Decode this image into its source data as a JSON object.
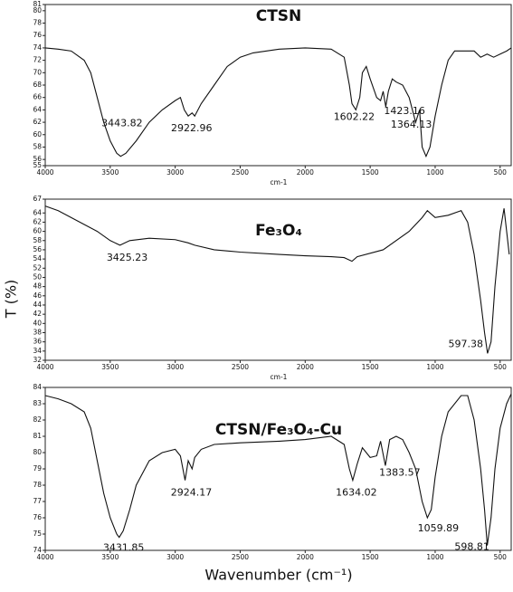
{
  "y_label": "T (%)",
  "x_label": "Wavenumber (cm⁻¹)",
  "chart_data": [
    {
      "type": "line",
      "title": "CTSN",
      "x_axis_label": "cm-1",
      "color": "#111111",
      "xlim": [
        4000,
        415
      ],
      "xticks": [
        4000,
        3500,
        3000,
        2500,
        2000,
        1500,
        1000,
        500
      ],
      "ylim": [
        55,
        81
      ],
      "yticks": [
        55,
        56,
        58,
        60,
        62,
        64,
        66,
        68,
        70,
        72,
        74,
        76,
        78,
        80,
        81
      ],
      "x": [
        4000,
        3900,
        3800,
        3700,
        3650,
        3600,
        3550,
        3500,
        3450,
        3420,
        3380,
        3300,
        3200,
        3100,
        3000,
        2960,
        2930,
        2900,
        2870,
        2850,
        2800,
        2700,
        2600,
        2500,
        2400,
        2200,
        2000,
        1800,
        1700,
        1660,
        1640,
        1610,
        1580,
        1560,
        1530,
        1500,
        1450,
        1420,
        1400,
        1380,
        1360,
        1330,
        1300,
        1250,
        1200,
        1150,
        1120,
        1100,
        1070,
        1040,
        1000,
        950,
        900,
        850,
        700,
        650,
        600,
        550,
        500,
        450,
        415
      ],
      "values": [
        74,
        73.8,
        73.5,
        72,
        70,
        66,
        62,
        59,
        57,
        56.5,
        57,
        59,
        62,
        64,
        65.5,
        66,
        64,
        63,
        63.5,
        63,
        65,
        68,
        71,
        72.5,
        73.2,
        73.8,
        74,
        73.8,
        72.5,
        68,
        65,
        64,
        66,
        70,
        71,
        69,
        66,
        65.5,
        67,
        64.5,
        67,
        69,
        68.5,
        68,
        66,
        62,
        64,
        58,
        56.5,
        58,
        63,
        68,
        72,
        73.5,
        73.5,
        72.5,
        73,
        72.5,
        73,
        73.5,
        74
      ],
      "annotations": [
        {
          "x": 3443.82,
          "y": 56.5,
          "label": "3443.82"
        },
        {
          "x": 2922.96,
          "y": 63,
          "label": "2922.96"
        },
        {
          "x": 1602.22,
          "y": 64,
          "label": "1602.22"
        },
        {
          "x": 1423.16,
          "y": 65.5,
          "label": "1423.16"
        },
        {
          "x": 1364.13,
          "y": 64.5,
          "label": "1364.13"
        }
      ]
    },
    {
      "type": "line",
      "title": "Fe₃O₄",
      "x_axis_label": "cm-1",
      "color": "#111111",
      "xlim": [
        4000,
        415
      ],
      "xticks": [
        4000,
        3500,
        3000,
        2500,
        2000,
        1500,
        1000,
        500
      ],
      "ylim": [
        32,
        67
      ],
      "yticks": [
        32,
        34,
        36,
        38,
        40,
        42,
        44,
        46,
        48,
        50,
        52,
        54,
        56,
        58,
        60,
        62,
        64,
        67
      ],
      "x": [
        4000,
        3900,
        3800,
        3700,
        3600,
        3500,
        3425,
        3350,
        3200,
        3000,
        2900,
        2850,
        2700,
        2500,
        2200,
        2000,
        1800,
        1700,
        1640,
        1600,
        1400,
        1200,
        1100,
        1060,
        1000,
        900,
        800,
        750,
        700,
        650,
        620,
        597,
        570,
        540,
        500,
        470,
        450,
        430
      ],
      "values": [
        65.5,
        64.5,
        63,
        61.5,
        60,
        58,
        57,
        58,
        58.5,
        58.2,
        57.5,
        57,
        56,
        55.5,
        55,
        54.7,
        54.5,
        54.3,
        53.5,
        54.5,
        56,
        60,
        63,
        64.5,
        63,
        63.5,
        64.5,
        62,
        55,
        45,
        38,
        33.5,
        36,
        48,
        60,
        65,
        60,
        55
      ],
      "annotations": [
        {
          "x": 3425.23,
          "y": 57,
          "label": "3425.23"
        },
        {
          "x": 597.38,
          "y": 33.5,
          "label": "597.38"
        }
      ]
    },
    {
      "type": "line",
      "title": "CTSN/Fe₃O₄-Cu",
      "color": "#111111",
      "xlim": [
        4000,
        415
      ],
      "xticks": [
        4000,
        3500,
        3000,
        2500,
        2000,
        1500,
        1000,
        500
      ],
      "ylim": [
        74,
        84
      ],
      "yticks": [
        74,
        75,
        76,
        77,
        78,
        79,
        80,
        81,
        82,
        83,
        84
      ],
      "x": [
        4000,
        3900,
        3800,
        3700,
        3650,
        3600,
        3550,
        3500,
        3450,
        3431,
        3400,
        3350,
        3300,
        3200,
        3100,
        3000,
        2960,
        2924,
        2900,
        2870,
        2850,
        2800,
        2700,
        2500,
        2200,
        2000,
        1800,
        1700,
        1660,
        1634,
        1600,
        1560,
        1500,
        1450,
        1420,
        1383,
        1350,
        1300,
        1250,
        1200,
        1150,
        1100,
        1060,
        1030,
        1000,
        950,
        900,
        800,
        750,
        700,
        650,
        620,
        599,
        570,
        540,
        500,
        450,
        415
      ],
      "values": [
        83.5,
        83.3,
        83,
        82.5,
        81.5,
        79.5,
        77.5,
        76,
        75,
        74.8,
        75.2,
        76.5,
        78,
        79.5,
        80,
        80.2,
        79.8,
        78.3,
        79.5,
        79,
        79.7,
        80.2,
        80.5,
        80.6,
        80.7,
        80.8,
        81,
        80.5,
        79,
        78.3,
        79.3,
        80.3,
        79.7,
        79.8,
        80.7,
        79.2,
        80.8,
        81,
        80.8,
        80,
        79,
        77,
        76,
        76.5,
        78.5,
        81,
        82.5,
        83.5,
        83.5,
        82,
        79,
        76.5,
        74.3,
        76,
        79,
        81.5,
        83,
        83.6
      ],
      "annotations": [
        {
          "x": 3431.85,
          "y": 74.8,
          "label": "3431.85"
        },
        {
          "x": 2924.17,
          "y": 78.3,
          "label": "2924.17"
        },
        {
          "x": 1634.02,
          "y": 78.3,
          "label": "1634.02"
        },
        {
          "x": 1383.57,
          "y": 79.2,
          "label": "1383.57"
        },
        {
          "x": 1059.89,
          "y": 76,
          "label": "1059.89"
        },
        {
          "x": 598.81,
          "y": 74.3,
          "label": "598.81"
        }
      ]
    }
  ]
}
